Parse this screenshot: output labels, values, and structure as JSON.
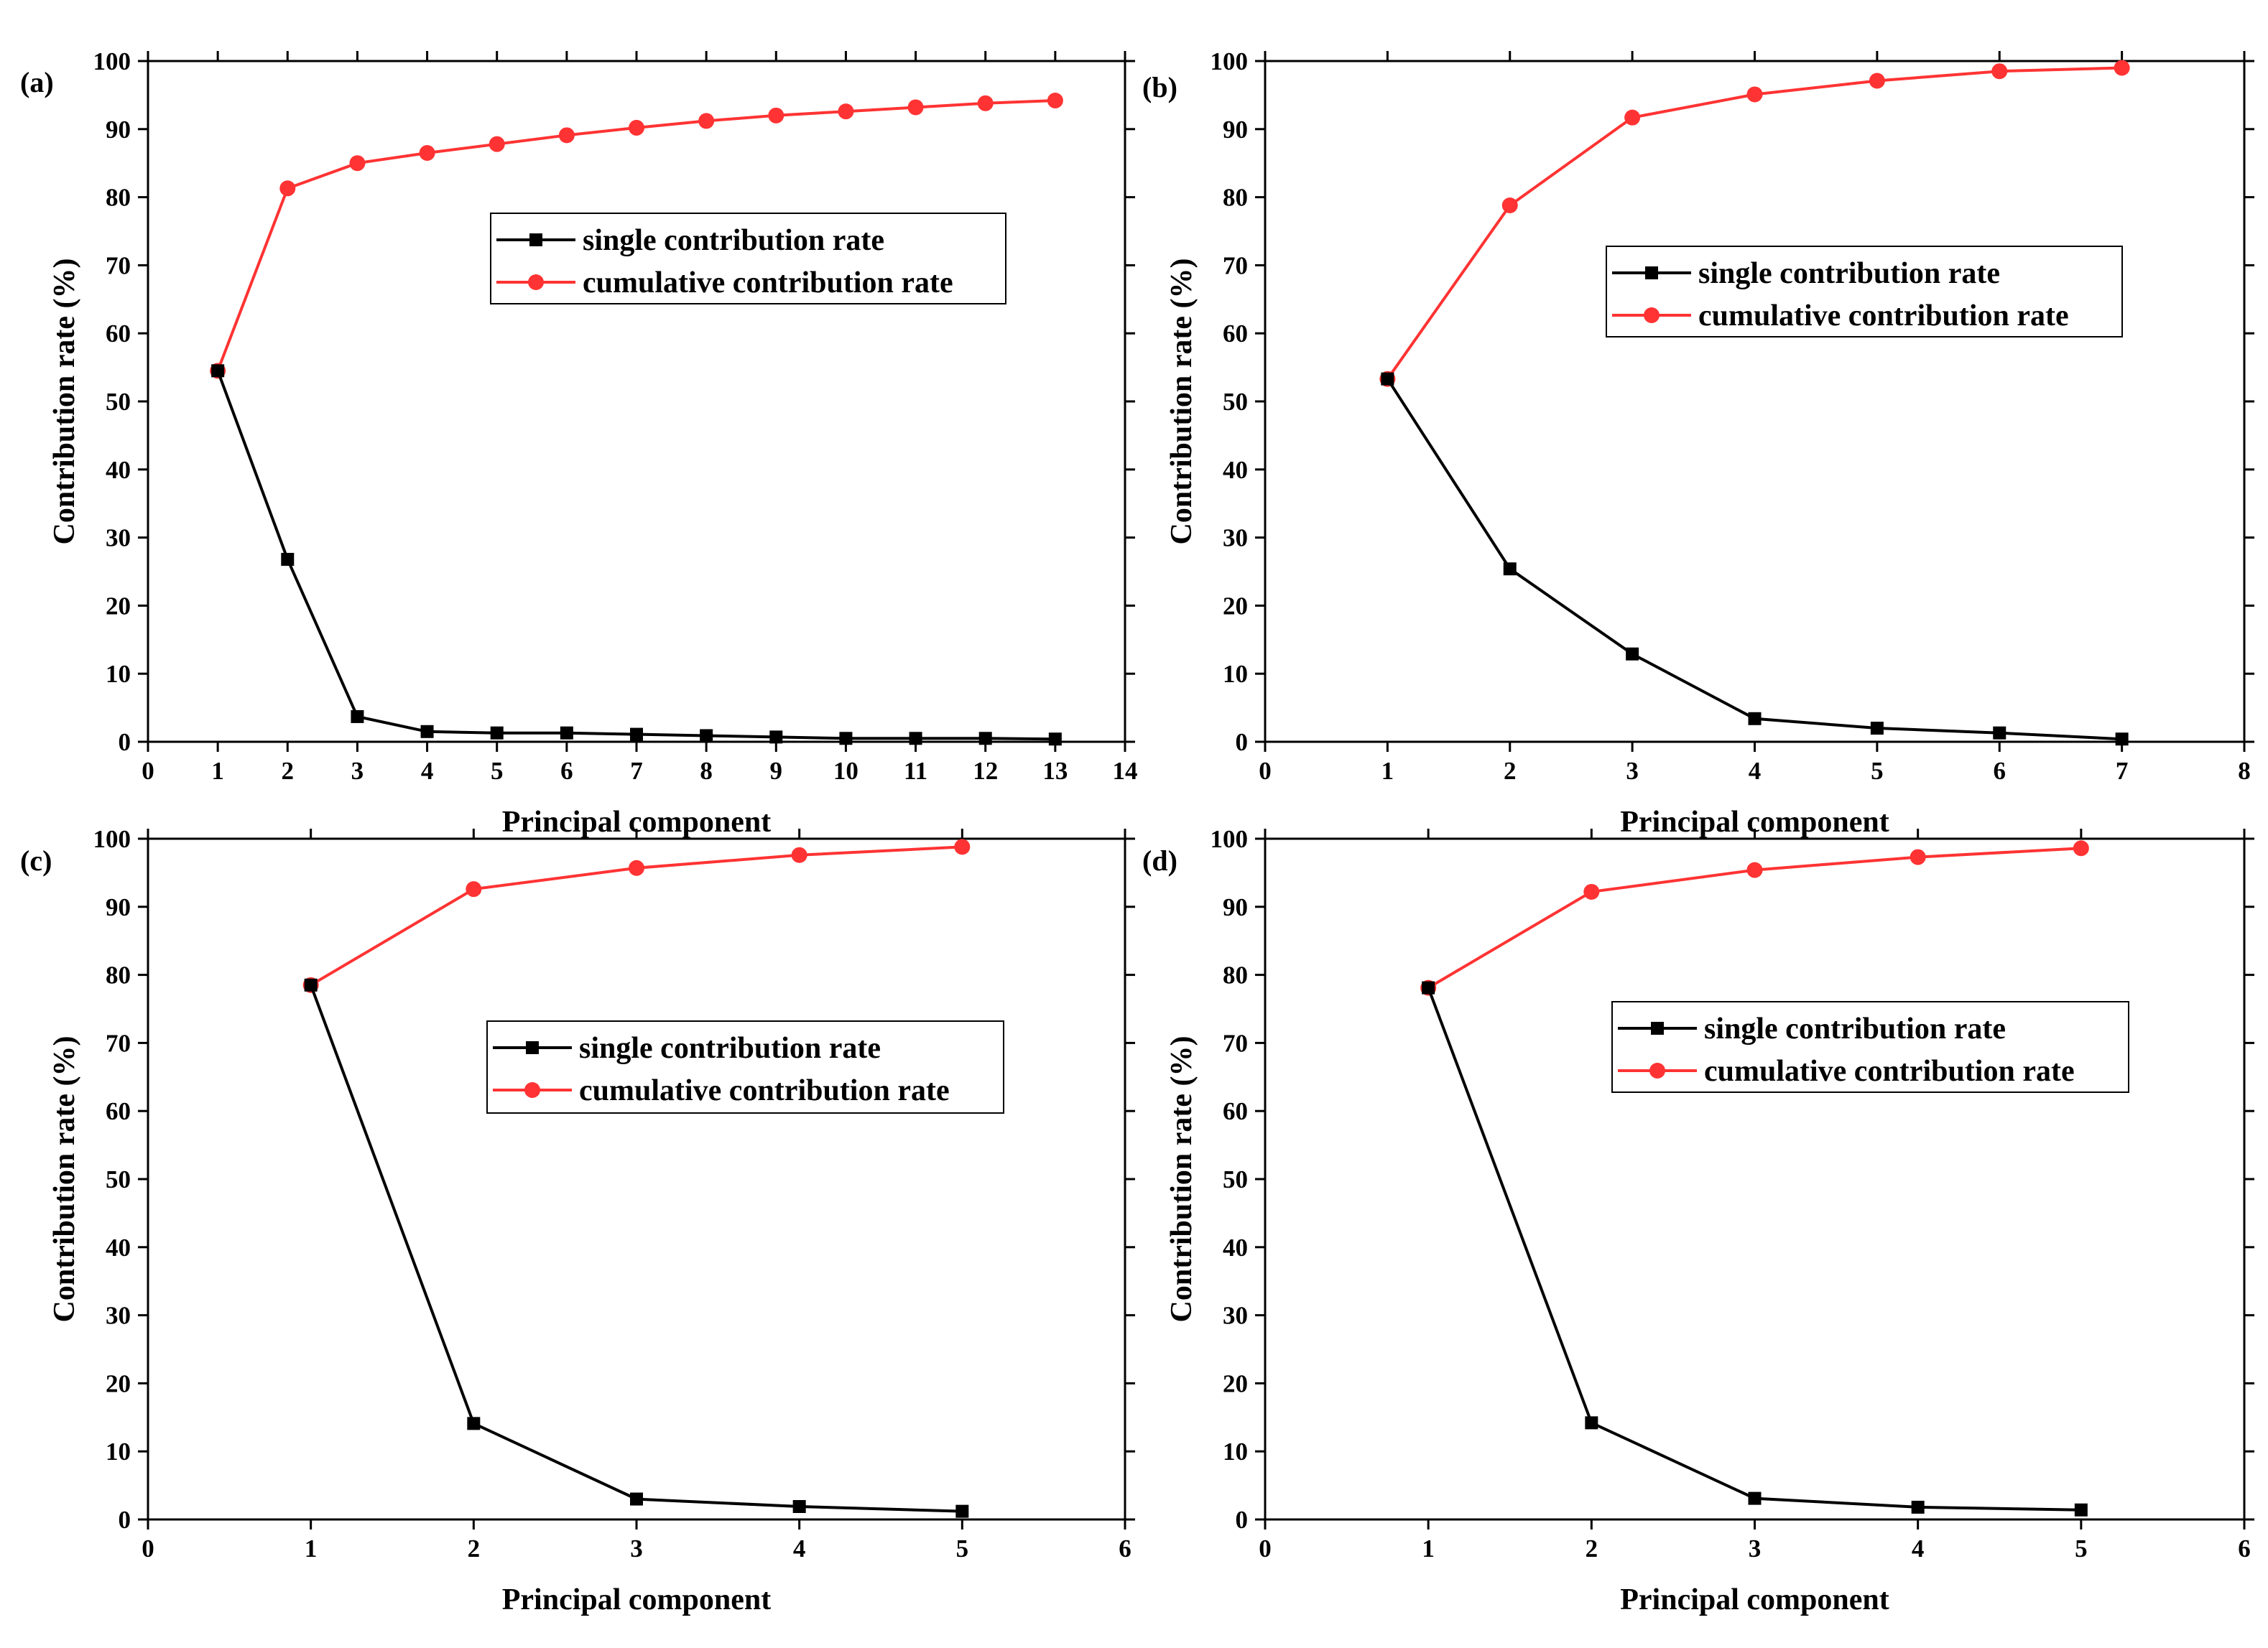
{
  "chart_data": [
    {
      "panel": "(a)",
      "type": "line",
      "title": "",
      "xlabel": "Principal component",
      "ylabel": "Contribution rate (%)",
      "xlim": [
        0,
        14
      ],
      "ylim": [
        0,
        100
      ],
      "xticks": [
        0,
        1,
        2,
        3,
        4,
        5,
        6,
        7,
        8,
        9,
        10,
        11,
        12,
        13,
        14
      ],
      "yticks": [
        0,
        10,
        20,
        30,
        40,
        50,
        60,
        70,
        80,
        90,
        100
      ],
      "legend_position": "upper-middle",
      "x": [
        1,
        2,
        3,
        4,
        5,
        6,
        7,
        8,
        9,
        10,
        11,
        12,
        13
      ],
      "series": [
        {
          "name": "single contribution rate",
          "color": "#000000",
          "marker": "square",
          "values": [
            54.5,
            26.8,
            3.7,
            1.5,
            1.3,
            1.3,
            1.1,
            0.9,
            0.7,
            0.5,
            0.5,
            0.5,
            0.4
          ]
        },
        {
          "name": "cumulative contribution rate",
          "color": "#ff3333",
          "marker": "circle",
          "values": [
            54.5,
            81.3,
            85.0,
            86.5,
            87.8,
            89.1,
            90.2,
            91.2,
            92.0,
            92.6,
            93.2,
            93.8,
            94.2
          ]
        }
      ]
    },
    {
      "panel": "(b)",
      "type": "line",
      "title": "",
      "xlabel": "Principal component",
      "ylabel": "Contribution rate (%)",
      "xlim": [
        0,
        8
      ],
      "ylim": [
        0,
        100
      ],
      "xticks": [
        0,
        1,
        2,
        3,
        4,
        5,
        6,
        7,
        8
      ],
      "yticks": [
        0,
        10,
        20,
        30,
        40,
        50,
        60,
        70,
        80,
        90,
        100
      ],
      "legend_position": "middle-right",
      "x": [
        1,
        2,
        3,
        4,
        5,
        6,
        7
      ],
      "series": [
        {
          "name": "single contribution rate",
          "color": "#000000",
          "marker": "square",
          "values": [
            53.3,
            25.4,
            12.9,
            3.4,
            2.0,
            1.3,
            0.4
          ]
        },
        {
          "name": "cumulative contribution rate",
          "color": "#ff3333",
          "marker": "circle",
          "values": [
            53.3,
            78.8,
            91.7,
            95.1,
            97.1,
            98.5,
            99.0
          ]
        }
      ]
    },
    {
      "panel": "(c)",
      "type": "line",
      "title": "",
      "xlabel": "Principal component",
      "ylabel": "Contribution rate (%)",
      "xlim": [
        0,
        6
      ],
      "ylim": [
        0,
        100
      ],
      "xticks": [
        0,
        1,
        2,
        3,
        4,
        5,
        6
      ],
      "yticks": [
        0,
        10,
        20,
        30,
        40,
        50,
        60,
        70,
        80,
        90,
        100
      ],
      "legend_position": "upper-right",
      "x": [
        1,
        2,
        3,
        4,
        5
      ],
      "series": [
        {
          "name": "single contribution rate",
          "color": "#000000",
          "marker": "square",
          "values": [
            78.5,
            14.1,
            3.0,
            1.9,
            1.2
          ]
        },
        {
          "name": "cumulative contribution rate",
          "color": "#ff3333",
          "marker": "circle",
          "values": [
            78.5,
            92.6,
            95.7,
            97.6,
            98.8
          ]
        }
      ]
    },
    {
      "panel": "(d)",
      "type": "line",
      "title": "",
      "xlabel": "Principal component",
      "ylabel": "Contribution rate (%)",
      "xlim": [
        0,
        6
      ],
      "ylim": [
        0,
        100
      ],
      "xticks": [
        0,
        1,
        2,
        3,
        4,
        5,
        6
      ],
      "yticks": [
        0,
        10,
        20,
        30,
        40,
        50,
        60,
        70,
        80,
        90,
        100
      ],
      "legend_position": "upper-right",
      "x": [
        1,
        2,
        3,
        4,
        5
      ],
      "series": [
        {
          "name": "single contribution rate",
          "color": "#000000",
          "marker": "square",
          "values": [
            78.1,
            14.2,
            3.1,
            1.8,
            1.4
          ]
        },
        {
          "name": "cumulative contribution rate",
          "color": "#ff3333",
          "marker": "circle",
          "values": [
            78.1,
            92.2,
            95.4,
            97.3,
            98.6
          ]
        }
      ]
    }
  ]
}
